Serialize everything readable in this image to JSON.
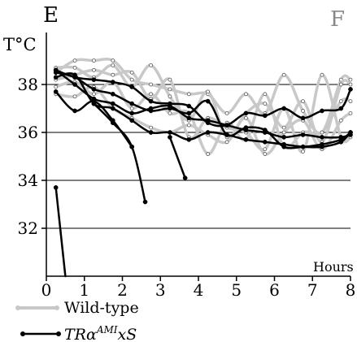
{
  "panel_letters": {
    "left": "E",
    "right": "F"
  },
  "colors": {
    "axis": "#000000",
    "grid": "#000000",
    "wildtype": "#c8c8c8",
    "mutant": "#000000"
  },
  "chart_data": {
    "type": "line",
    "title": "",
    "xlabel": "Hours",
    "ylabel": "T°C",
    "xlim": [
      0,
      8
    ],
    "ylim": [
      30,
      40
    ],
    "xticks": [
      "0",
      "1",
      "2",
      "3",
      "4",
      "5",
      "6",
      "7",
      "8"
    ],
    "yticks": [
      "32",
      "34",
      "36",
      "38"
    ],
    "grid_y": [
      32,
      34,
      36,
      38
    ],
    "legend": {
      "placement": "bottom-left",
      "entries": [
        {
          "label": "Wild-type",
          "italic": false,
          "sup": "",
          "suffix": ""
        },
        {
          "label": "TRα",
          "italic": true,
          "sup": "AMI",
          "suffix": "xS"
        }
      ]
    },
    "series": [
      {
        "group": "Wild-type",
        "x": [
          0.25,
          0.75,
          1.25,
          1.75,
          2.25,
          2.75,
          3.25,
          3.75,
          4.25,
          4.75,
          5.25,
          5.75,
          6.25,
          6.75,
          7.25,
          7.75,
          8.0
        ],
        "y": [
          38.5,
          39.0,
          39.0,
          39.0,
          38.2,
          38.0,
          37.8,
          37.6,
          37.6,
          36.8,
          37.6,
          36.8,
          38.4,
          36.9,
          36.0,
          38.2,
          38.2
        ]
      },
      {
        "group": "Wild-type",
        "x": [
          0.25,
          0.75,
          1.25,
          1.75,
          2.25,
          2.75,
          3.25,
          3.75,
          4.25,
          4.75,
          5.25,
          5.75,
          6.25,
          6.75,
          7.25,
          7.75,
          8.0
        ],
        "y": [
          38.7,
          38.7,
          38.3,
          38.8,
          37.9,
          38.8,
          37.5,
          36.5,
          37.7,
          35.8,
          36.8,
          37.2,
          36.2,
          37.3,
          35.6,
          38.0,
          38.0
        ]
      },
      {
        "group": "Wild-type",
        "x": [
          0.25,
          0.75,
          1.25,
          1.75,
          2.25,
          2.75,
          3.25,
          3.75,
          4.25,
          4.75,
          5.25,
          5.75,
          6.25,
          6.75,
          7.25,
          7.75,
          8.0
        ],
        "y": [
          38.2,
          38.4,
          38.6,
          38.4,
          38.5,
          37.4,
          38.2,
          35.8,
          36.6,
          36.2,
          36.0,
          35.3,
          37.0,
          35.2,
          38.4,
          35.8,
          35.8
        ]
      },
      {
        "group": "Wild-type",
        "x": [
          0.25,
          0.75,
          1.25,
          1.75,
          2.25,
          2.75,
          3.25,
          3.75,
          4.25,
          4.75,
          5.25,
          5.75,
          6.25,
          6.75,
          7.25,
          7.75,
          8.0
        ],
        "y": [
          37.9,
          38.1,
          37.6,
          38.1,
          37.0,
          37.6,
          36.8,
          36.8,
          35.1,
          36.4,
          35.7,
          37.6,
          35.4,
          36.0,
          36.0,
          37.3,
          37.3
        ]
      },
      {
        "group": "Wild-type",
        "x": [
          0.25,
          0.75,
          1.25,
          1.75,
          2.25,
          2.75,
          3.25,
          3.75,
          4.25,
          4.75,
          5.25,
          5.75,
          6.25,
          6.75,
          7.25,
          7.75,
          8.0
        ],
        "y": [
          37.6,
          37.5,
          37.9,
          37.0,
          36.6,
          36.2,
          36.0,
          36.3,
          35.9,
          35.6,
          36.6,
          35.1,
          36.0,
          36.5,
          35.3,
          36.5,
          36.8
        ]
      },
      {
        "group": "TRαAMIxS",
        "x": [
          0.25,
          0.75,
          1.25,
          1.75,
          2.25,
          2.75,
          3.25,
          3.75,
          4.25,
          4.75,
          5.25,
          5.75,
          6.25,
          6.75,
          7.25,
          7.75,
          8.0
        ],
        "y": [
          38.6,
          38.3,
          38.2,
          38.1,
          37.9,
          37.3,
          37.2,
          37.1,
          36.4,
          36.3,
          36.8,
          36.7,
          37.0,
          36.6,
          36.9,
          37.0,
          37.8
        ]
      },
      {
        "group": "TRαAMIxS",
        "x": [
          0.25,
          0.75,
          1.25,
          1.75,
          2.25,
          2.75,
          3.25,
          3.75,
          4.25,
          4.75,
          5.25,
          5.75,
          6.25,
          6.75,
          7.25,
          7.75,
          8.0
        ],
        "y": [
          38.5,
          38.3,
          37.8,
          37.6,
          37.2,
          36.9,
          37.0,
          36.8,
          37.3,
          35.9,
          36.2,
          36.1,
          35.4,
          35.4,
          35.5,
          35.7,
          36.0
        ]
      },
      {
        "group": "TRαAMIxS",
        "x": [
          0.25,
          0.75,
          1.25,
          1.75,
          2.25,
          2.75,
          3.25,
          3.75,
          4.25,
          4.75,
          5.25,
          5.75,
          6.25,
          6.75,
          7.25,
          7.75,
          8.0
        ],
        "y": [
          38.6,
          38.0,
          37.4,
          37.2,
          36.8,
          37.0,
          37.1,
          36.6,
          36.5,
          36.3,
          36.1,
          36.0,
          35.8,
          35.9,
          35.8,
          35.8,
          35.9
        ]
      },
      {
        "group": "TRαAMIxS",
        "x": [
          0.25,
          0.75,
          1.25,
          1.75,
          2.25,
          2.75,
          3.25,
          3.75,
          4.25,
          4.75,
          5.25,
          5.75,
          6.25,
          6.75,
          7.25,
          7.75,
          8.0
        ],
        "y": [
          38.3,
          38.4,
          37.2,
          37.0,
          36.5,
          36.0,
          36.0,
          35.7,
          36.0,
          35.9,
          35.7,
          35.6,
          35.5,
          35.4,
          35.4,
          35.6,
          36.0
        ]
      },
      {
        "group": "TRαAMIxS",
        "x": [
          0.25,
          0.75,
          1.25,
          1.75,
          2.25
        ],
        "y": [
          37.7,
          36.9,
          37.3,
          36.5,
          35.4
        ]
      },
      {
        "group": "TRαAMIxS",
        "x": [
          1.25,
          1.75,
          2.25,
          2.6
        ],
        "y": [
          37.2,
          36.4,
          35.4,
          33.1
        ]
      },
      {
        "group": "TRαAMIxS",
        "x": [
          3.25,
          3.65
        ],
        "y": [
          35.8,
          34.1
        ]
      },
      {
        "group": "TRαAMIxS",
        "x": [
          0.25,
          0.5
        ],
        "y": [
          33.7,
          30.0
        ]
      }
    ]
  }
}
